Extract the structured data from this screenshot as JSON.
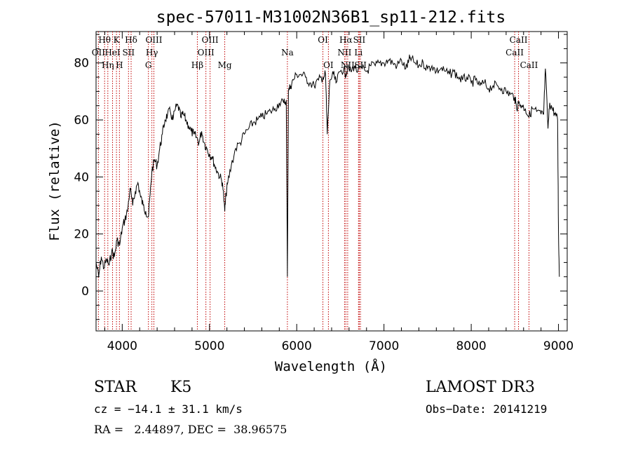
{
  "chart_data": {
    "type": "line",
    "title": "spec-57011-M31002N36B1_sp11-212.fits",
    "xlabel": "Wavelength (Å)",
    "ylabel": "Flux (relative)",
    "xlim": [
      3700,
      9100
    ],
    "ylim": [
      -14,
      91
    ],
    "xticks": [
      4000,
      5000,
      6000,
      7000,
      8000,
      9000
    ],
    "yticks": [
      0,
      20,
      40,
      60,
      80
    ],
    "series": [
      {
        "name": "spectrum",
        "x": [
          3700,
          3730,
          3760,
          3790,
          3820,
          3850,
          3880,
          3910,
          3940,
          3970,
          4000,
          4030,
          4060,
          4090,
          4120,
          4150,
          4180,
          4210,
          4240,
          4270,
          4300,
          4320,
          4340,
          4370,
          4400,
          4430,
          4460,
          4490,
          4520,
          4550,
          4580,
          4610,
          4640,
          4670,
          4700,
          4730,
          4760,
          4790,
          4820,
          4850,
          4880,
          4910,
          4940,
          4970,
          5000,
          5030,
          5060,
          5090,
          5120,
          5150,
          5175,
          5190,
          5210,
          5250,
          5300,
          5350,
          5400,
          5450,
          5500,
          5550,
          5600,
          5650,
          5700,
          5750,
          5800,
          5850,
          5880,
          5893,
          5905,
          5930,
          5960,
          6000,
          6050,
          6100,
          6150,
          6200,
          6250,
          6300,
          6330,
          6350,
          6380,
          6420,
          6450,
          6500,
          6540,
          6563,
          6580,
          6620,
          6660,
          6700,
          6750,
          6800,
          6850,
          6900,
          6950,
          7000,
          7050,
          7100,
          7150,
          7200,
          7250,
          7280,
          7300,
          7350,
          7400,
          7450,
          7500,
          7550,
          7600,
          7650,
          7700,
          7750,
          7800,
          7850,
          7900,
          7950,
          8000,
          8050,
          8100,
          8150,
          8200,
          8250,
          8300,
          8350,
          8400,
          8450,
          8498,
          8520,
          8542,
          8580,
          8620,
          8662,
          8700,
          8750,
          8800,
          8830,
          8850,
          8880,
          8900,
          8930,
          8960,
          8990,
          9000,
          9010
        ],
        "values": [
          10,
          5,
          12,
          8,
          11,
          9,
          14,
          12,
          18,
          16,
          22,
          25,
          28,
          36,
          30,
          35,
          38,
          33,
          30,
          28,
          26,
          34,
          42,
          46,
          44,
          50,
          55,
          60,
          62,
          63,
          60,
          64,
          65,
          61,
          62,
          60,
          58,
          56,
          55,
          54,
          52,
          56,
          52,
          50,
          48,
          47,
          44,
          42,
          40,
          38,
          28,
          34,
          38,
          44,
          50,
          52,
          55,
          57,
          59,
          60,
          61,
          62,
          63,
          64,
          66,
          66,
          67,
          5,
          70,
          72,
          74,
          76,
          76,
          75,
          73,
          72,
          74,
          75,
          76,
          55,
          74,
          76,
          73,
          77,
          78,
          76,
          78,
          77,
          79,
          77,
          78,
          77,
          79,
          79,
          80,
          80,
          81,
          80,
          79,
          81,
          78,
          80,
          82,
          80,
          79,
          80,
          78,
          79,
          77,
          78,
          77,
          76,
          77,
          75,
          74,
          75,
          73,
          74,
          72,
          73,
          71,
          72,
          72,
          71,
          70,
          69,
          68,
          64,
          66,
          65,
          64,
          61,
          64,
          63,
          62,
          62,
          78,
          57,
          66,
          64,
          62,
          60,
          20,
          5
        ]
      }
    ],
    "spectral_lines": [
      {
        "label": "Hθ",
        "x": 3798,
        "row": 1
      },
      {
        "label": "OII",
        "x": 3727,
        "row": 2
      },
      {
        "label": "Hη",
        "x": 3835,
        "row": 3
      },
      {
        "label": "K",
        "x": 3934,
        "row": 1
      },
      {
        "label": "HeI",
        "x": 3889,
        "row": 2
      },
      {
        "label": "H",
        "x": 3968,
        "row": 3
      },
      {
        "label": "SII",
        "x": 4072,
        "row": 2
      },
      {
        "label": "Hδ",
        "x": 4102,
        "row": 1
      },
      {
        "label": "OIII",
        "x": 4363,
        "row": 1
      },
      {
        "label": "Hγ",
        "x": 4340,
        "row": 2
      },
      {
        "label": "G",
        "x": 4300,
        "row": 3
      },
      {
        "label": "Hβ",
        "x": 4861,
        "row": 3
      },
      {
        "label": "OIII",
        "x": 5007,
        "row": 1
      },
      {
        "label": "OIII",
        "x": 4959,
        "row": 2
      },
      {
        "label": "Mg",
        "x": 5175,
        "row": 3
      },
      {
        "label": "Na",
        "x": 5893,
        "row": 2
      },
      {
        "label": "OI",
        "x": 6300,
        "row": 1
      },
      {
        "label": "OI",
        "x": 6363,
        "row": 3
      },
      {
        "label": "Hα",
        "x": 6563,
        "row": 1
      },
      {
        "label": "NII",
        "x": 6548,
        "row": 2
      },
      {
        "label": "NII",
        "x": 6584,
        "row": 3
      },
      {
        "label": "SII",
        "x": 6717,
        "row": 1
      },
      {
        "label": "Li",
        "x": 6708,
        "row": 2
      },
      {
        "label": "SII",
        "x": 6731,
        "row": 3
      },
      {
        "label": "CaII",
        "x": 8542,
        "row": 1
      },
      {
        "label": "CaII",
        "x": 8498,
        "row": 2
      },
      {
        "label": "CaII",
        "x": 8662,
        "row": 3
      }
    ]
  },
  "info": {
    "object_class": "STAR",
    "subclass": "K5",
    "survey": "LAMOST DR3",
    "cz": "cz = −14.1 ± 31.1 km/s",
    "obs_date": "Obs−Date: 20141219",
    "coords": "RA =   2.44897, DEC =  38.96575"
  },
  "colors": {
    "spectrum": "#000000",
    "line_marker": "#c00000",
    "axes": "#000000"
  }
}
